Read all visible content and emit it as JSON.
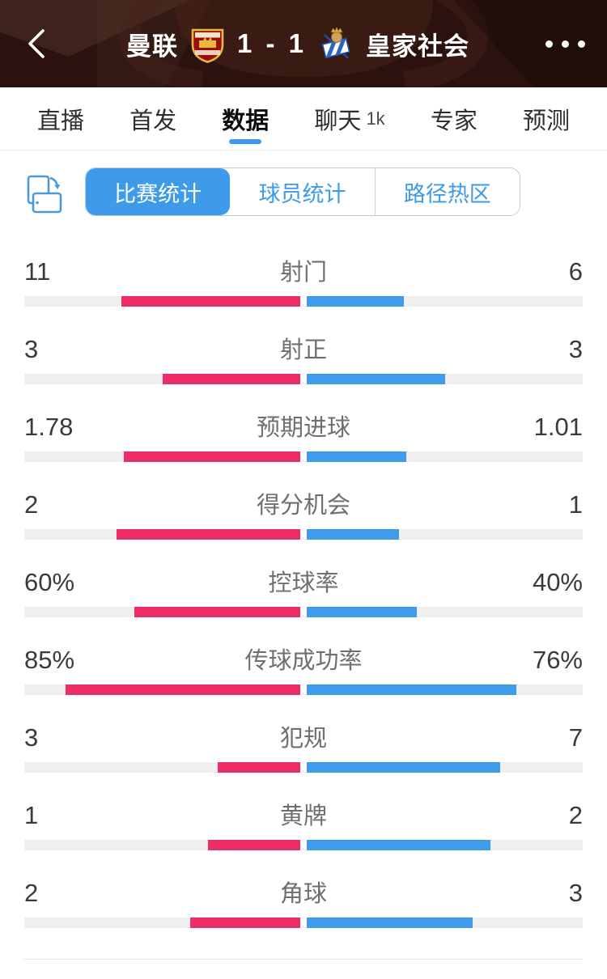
{
  "header": {
    "home_team": "曼联",
    "away_team": "皇家社会",
    "score": "1 - 1",
    "back_icon": "chevron-left",
    "more_icon": "ellipsis"
  },
  "tabs": [
    {
      "key": "live",
      "label": "直播"
    },
    {
      "key": "lineup",
      "label": "首发"
    },
    {
      "key": "data",
      "label": "数据",
      "active": true
    },
    {
      "key": "chat",
      "label": "聊天",
      "badge": "1k"
    },
    {
      "key": "expert",
      "label": "专家"
    },
    {
      "key": "predict",
      "label": "预测"
    }
  ],
  "stats_nav": {
    "rotate_icon": "rotate-device",
    "segments": [
      {
        "key": "match-stats",
        "label": "比赛统计",
        "active": true
      },
      {
        "key": "player-stats",
        "label": "球员统计"
      },
      {
        "key": "heatmap",
        "label": "路径热区"
      }
    ]
  },
  "stats": {
    "rows": [
      {
        "key": "shots",
        "label": "射门",
        "left": "11",
        "right": "6",
        "left_pct": 64.7,
        "right_pct": 35.3
      },
      {
        "key": "shots-on-target",
        "label": "射正",
        "left": "3",
        "right": "3",
        "left_pct": 50,
        "right_pct": 50
      },
      {
        "key": "xg",
        "label": "预期进球",
        "left": "1.78",
        "right": "1.01",
        "left_pct": 63.8,
        "right_pct": 36.2
      },
      {
        "key": "big-chances",
        "label": "得分机会",
        "left": "2",
        "right": "1",
        "left_pct": 66.7,
        "right_pct": 33.3
      },
      {
        "key": "possession",
        "label": "控球率",
        "left": "60%",
        "right": "40%",
        "left_pct": 60,
        "right_pct": 40
      },
      {
        "key": "pass-accuracy",
        "label": "传球成功率",
        "left": "85%",
        "right": "76%",
        "left_pct": 85,
        "right_pct": 76
      },
      {
        "key": "fouls",
        "label": "犯规",
        "left": "3",
        "right": "7",
        "left_pct": 30,
        "right_pct": 70
      },
      {
        "key": "yellow-cards",
        "label": "黄牌",
        "left": "1",
        "right": "2",
        "left_pct": 33.3,
        "right_pct": 66.7
      },
      {
        "key": "corners",
        "label": "角球",
        "left": "2",
        "right": "3",
        "left_pct": 40,
        "right_pct": 60
      }
    ]
  },
  "colors": {
    "home": "#ec2d66",
    "away": "#3f9ceb",
    "accent": "#3d9be9",
    "track": "#f0f0f0",
    "header_bg": "#2b120f"
  }
}
